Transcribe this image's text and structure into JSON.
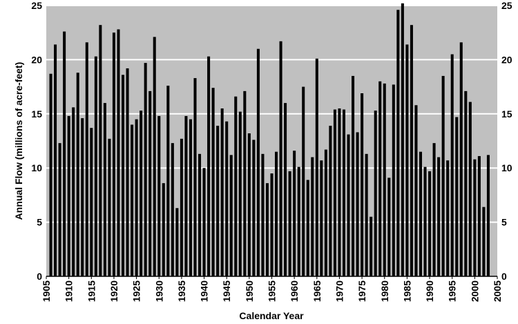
{
  "chart_data": {
    "type": "bar",
    "title": "",
    "xlabel": "Calendar Year",
    "ylabel": "Annual Flow (millions of acre-feet)",
    "xlim": [
      1905,
      2005
    ],
    "ylim": [
      0,
      25
    ],
    "x_ticks": [
      1905,
      1910,
      1915,
      1920,
      1925,
      1930,
      1935,
      1940,
      1945,
      1950,
      1955,
      1960,
      1965,
      1970,
      1975,
      1980,
      1985,
      1990,
      1995,
      2000,
      2005
    ],
    "y_ticks": [
      0,
      5,
      10,
      15,
      20,
      25
    ],
    "grid": "horizontal",
    "colors": {
      "plot_bg": "#c0c0c0",
      "bar": "#000000",
      "grid": "#ffffff"
    },
    "x": [
      1906,
      1907,
      1908,
      1909,
      1910,
      1911,
      1912,
      1913,
      1914,
      1915,
      1916,
      1917,
      1918,
      1919,
      1920,
      1921,
      1922,
      1923,
      1924,
      1925,
      1926,
      1927,
      1928,
      1929,
      1930,
      1931,
      1932,
      1933,
      1934,
      1935,
      1936,
      1937,
      1938,
      1939,
      1940,
      1941,
      1942,
      1943,
      1944,
      1945,
      1946,
      1947,
      1948,
      1949,
      1950,
      1951,
      1952,
      1953,
      1954,
      1955,
      1956,
      1957,
      1958,
      1959,
      1960,
      1961,
      1962,
      1963,
      1964,
      1965,
      1966,
      1967,
      1968,
      1969,
      1970,
      1971,
      1972,
      1973,
      1974,
      1975,
      1976,
      1977,
      1978,
      1979,
      1980,
      1981,
      1982,
      1983,
      1984,
      1985,
      1986,
      1987,
      1988,
      1989,
      1990,
      1991,
      1992,
      1993,
      1994,
      1995,
      1996,
      1997,
      1998,
      1999,
      2000,
      2001,
      2002,
      2003
    ],
    "values": [
      18.7,
      21.4,
      12.3,
      22.6,
      14.8,
      15.6,
      18.8,
      14.6,
      21.6,
      13.7,
      20.3,
      23.2,
      16.0,
      12.7,
      22.5,
      22.8,
      18.6,
      19.2,
      14.0,
      14.5,
      15.3,
      19.7,
      17.1,
      22.1,
      14.8,
      8.6,
      17.6,
      12.3,
      6.3,
      12.7,
      14.8,
      14.5,
      18.3,
      11.3,
      10.0,
      20.3,
      17.4,
      13.9,
      15.5,
      14.3,
      11.2,
      16.6,
      15.2,
      17.1,
      13.2,
      12.6,
      21.0,
      11.3,
      8.6,
      9.5,
      11.5,
      21.7,
      16.0,
      9.7,
      11.6,
      10.1,
      17.5,
      8.9,
      11.0,
      20.1,
      10.7,
      11.7,
      13.9,
      15.4,
      15.5,
      15.4,
      13.1,
      18.5,
      13.3,
      16.9,
      11.3,
      5.5,
      15.3,
      18.0,
      17.8,
      9.1,
      17.7,
      24.6,
      25.2,
      21.4,
      23.2,
      15.8,
      11.5,
      10.1,
      9.7,
      12.3,
      11.0,
      18.5,
      10.7,
      20.5,
      14.7,
      21.6,
      17.1,
      16.1,
      10.8,
      11.1,
      6.4,
      11.2
    ]
  }
}
